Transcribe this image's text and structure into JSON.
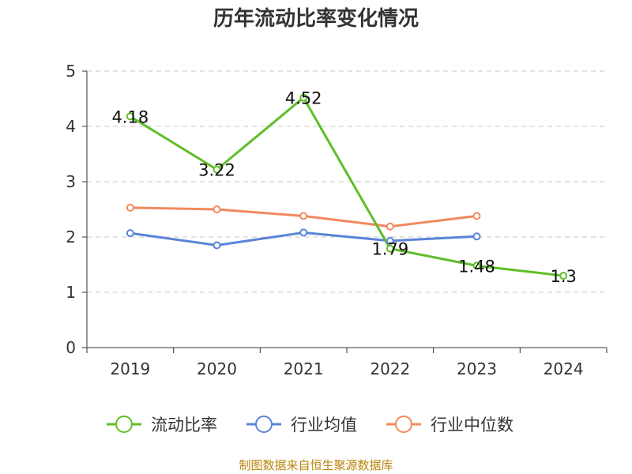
{
  "chart_data": {
    "type": "line",
    "title": "历年流动比率变化情况",
    "categories": [
      "2019",
      "2020",
      "2021",
      "2022",
      "2023",
      "2024"
    ],
    "ylim": [
      0,
      5
    ],
    "yticks": [
      "0",
      "1",
      "2",
      "3",
      "4",
      "5"
    ],
    "series": [
      {
        "name": "流动比率",
        "color": "#5fbe27",
        "values": [
          4.18,
          3.22,
          4.52,
          1.79,
          1.48,
          1.3
        ],
        "show_labels": true
      },
      {
        "name": "行业均值",
        "color": "#5b84d8",
        "values": [
          2.07,
          1.85,
          2.08,
          1.93,
          2.01,
          null
        ],
        "show_labels": false
      },
      {
        "name": "行业中位数",
        "color": "#f2895e",
        "values": [
          2.53,
          2.5,
          2.38,
          2.19,
          2.38,
          null
        ],
        "show_labels": false
      }
    ],
    "data_labels": [
      "4.18",
      "3.22",
      "4.52",
      "1.79",
      "1.48",
      "1.3"
    ]
  },
  "source_text": "制图数据来自恒生聚源数据库"
}
